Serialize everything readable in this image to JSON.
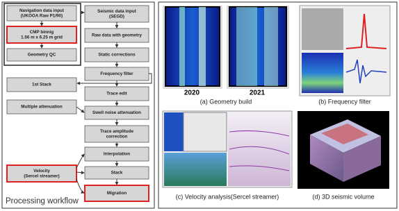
{
  "workflow": {
    "title": "Processing workflow",
    "left_boxes": [
      {
        "lines": [
          "Navigation data input",
          "(UKOOA Raw P1/90)"
        ],
        "highlight": false
      },
      {
        "lines": [
          "CMP binnig",
          "1.56 m x 6.25 m grid"
        ],
        "highlight": true
      },
      {
        "lines": [
          "Geometry QC"
        ],
        "highlight": false
      },
      {
        "lines": [
          "1st Stack"
        ],
        "highlight": false
      },
      {
        "lines": [
          "Multiple attenuation"
        ],
        "highlight": false
      },
      {
        "lines": [
          "Velocity",
          "(Sercel streamer)"
        ],
        "highlight": true
      }
    ],
    "main_boxes": [
      {
        "lines": [
          "Seismic data input",
          "(SEGD)"
        ],
        "highlight": false
      },
      {
        "lines": [
          "Raw data with geometry"
        ],
        "highlight": false
      },
      {
        "lines": [
          "Static corrections"
        ],
        "highlight": false
      },
      {
        "lines": [
          "Frequency filter"
        ],
        "highlight": false
      },
      {
        "lines": [
          "Trace edit"
        ],
        "highlight": false
      },
      {
        "lines": [
          "Swell noise attenuation"
        ],
        "highlight": false
      },
      {
        "lines": [
          "Trace amplitude",
          "correction"
        ],
        "highlight": false
      },
      {
        "lines": [
          "Interpolation"
        ],
        "highlight": false
      },
      {
        "lines": [
          "Stack"
        ],
        "highlight": false
      },
      {
        "lines": [
          "Migration"
        ],
        "highlight": true
      }
    ]
  },
  "panels": [
    {
      "caption": "(a) Geometry build",
      "labels": [
        "2020",
        "2021"
      ]
    },
    {
      "caption": "(b) Frequency filter"
    },
    {
      "caption": "(c) Velocity analysis(Sercel streamer)"
    },
    {
      "caption": "(d) 3D seismic volume"
    }
  ]
}
